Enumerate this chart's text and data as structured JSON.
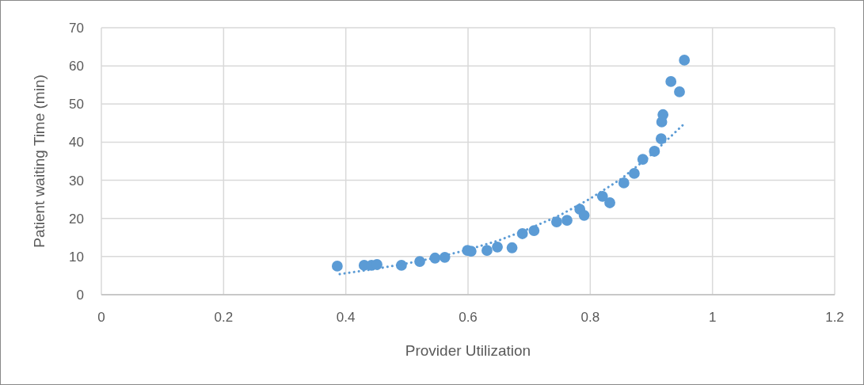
{
  "chart_data": {
    "type": "scatter",
    "xlabel": "Provider Utilization",
    "ylabel": "Patient waiting Time (min)",
    "xlim": [
      0,
      1.2
    ],
    "xticks": [
      0,
      0.2,
      0.4,
      0.6,
      0.8,
      1,
      1.2
    ],
    "ylim": [
      0,
      70
    ],
    "yticks": [
      0,
      10,
      20,
      30,
      40,
      50,
      60,
      70
    ],
    "grid": true,
    "series": [
      {
        "color": "#5b9bd5",
        "marker": "circle",
        "x": [
          0.386,
          0.43,
          0.442,
          0.451,
          0.491,
          0.521,
          0.546,
          0.562,
          0.599,
          0.605,
          0.631,
          0.648,
          0.672,
          0.689,
          0.708,
          0.745,
          0.762,
          0.783,
          0.79,
          0.82,
          0.832,
          0.855,
          0.872,
          0.886,
          0.905,
          0.916,
          0.917,
          0.919,
          0.932,
          0.946,
          0.954
        ],
        "values": [
          7.5,
          7.7,
          7.7,
          7.9,
          7.7,
          8.7,
          9.6,
          9.8,
          11.6,
          11.4,
          11.6,
          12.5,
          12.3,
          16,
          16.8,
          19.1,
          19.5,
          22.4,
          20.8,
          25.8,
          24.1,
          29.3,
          31.8,
          35.5,
          37.6,
          40.9,
          45.3,
          47.2,
          55.9,
          53.2,
          61.5
        ]
      },
      {
        "type": "line",
        "color": "#5b9bd5",
        "marker": "none",
        "line_style": "dotted",
        "x": [
          0.39,
          0.45,
          0.5,
          0.55,
          0.6,
          0.65,
          0.7,
          0.75,
          0.8,
          0.85,
          0.9,
          0.955
        ],
        "values": [
          5.4,
          6.8,
          8.2,
          9.8,
          11.8,
          14.2,
          17.3,
          20.8,
          25.2,
          30.3,
          36.7,
          45
        ]
      }
    ]
  }
}
